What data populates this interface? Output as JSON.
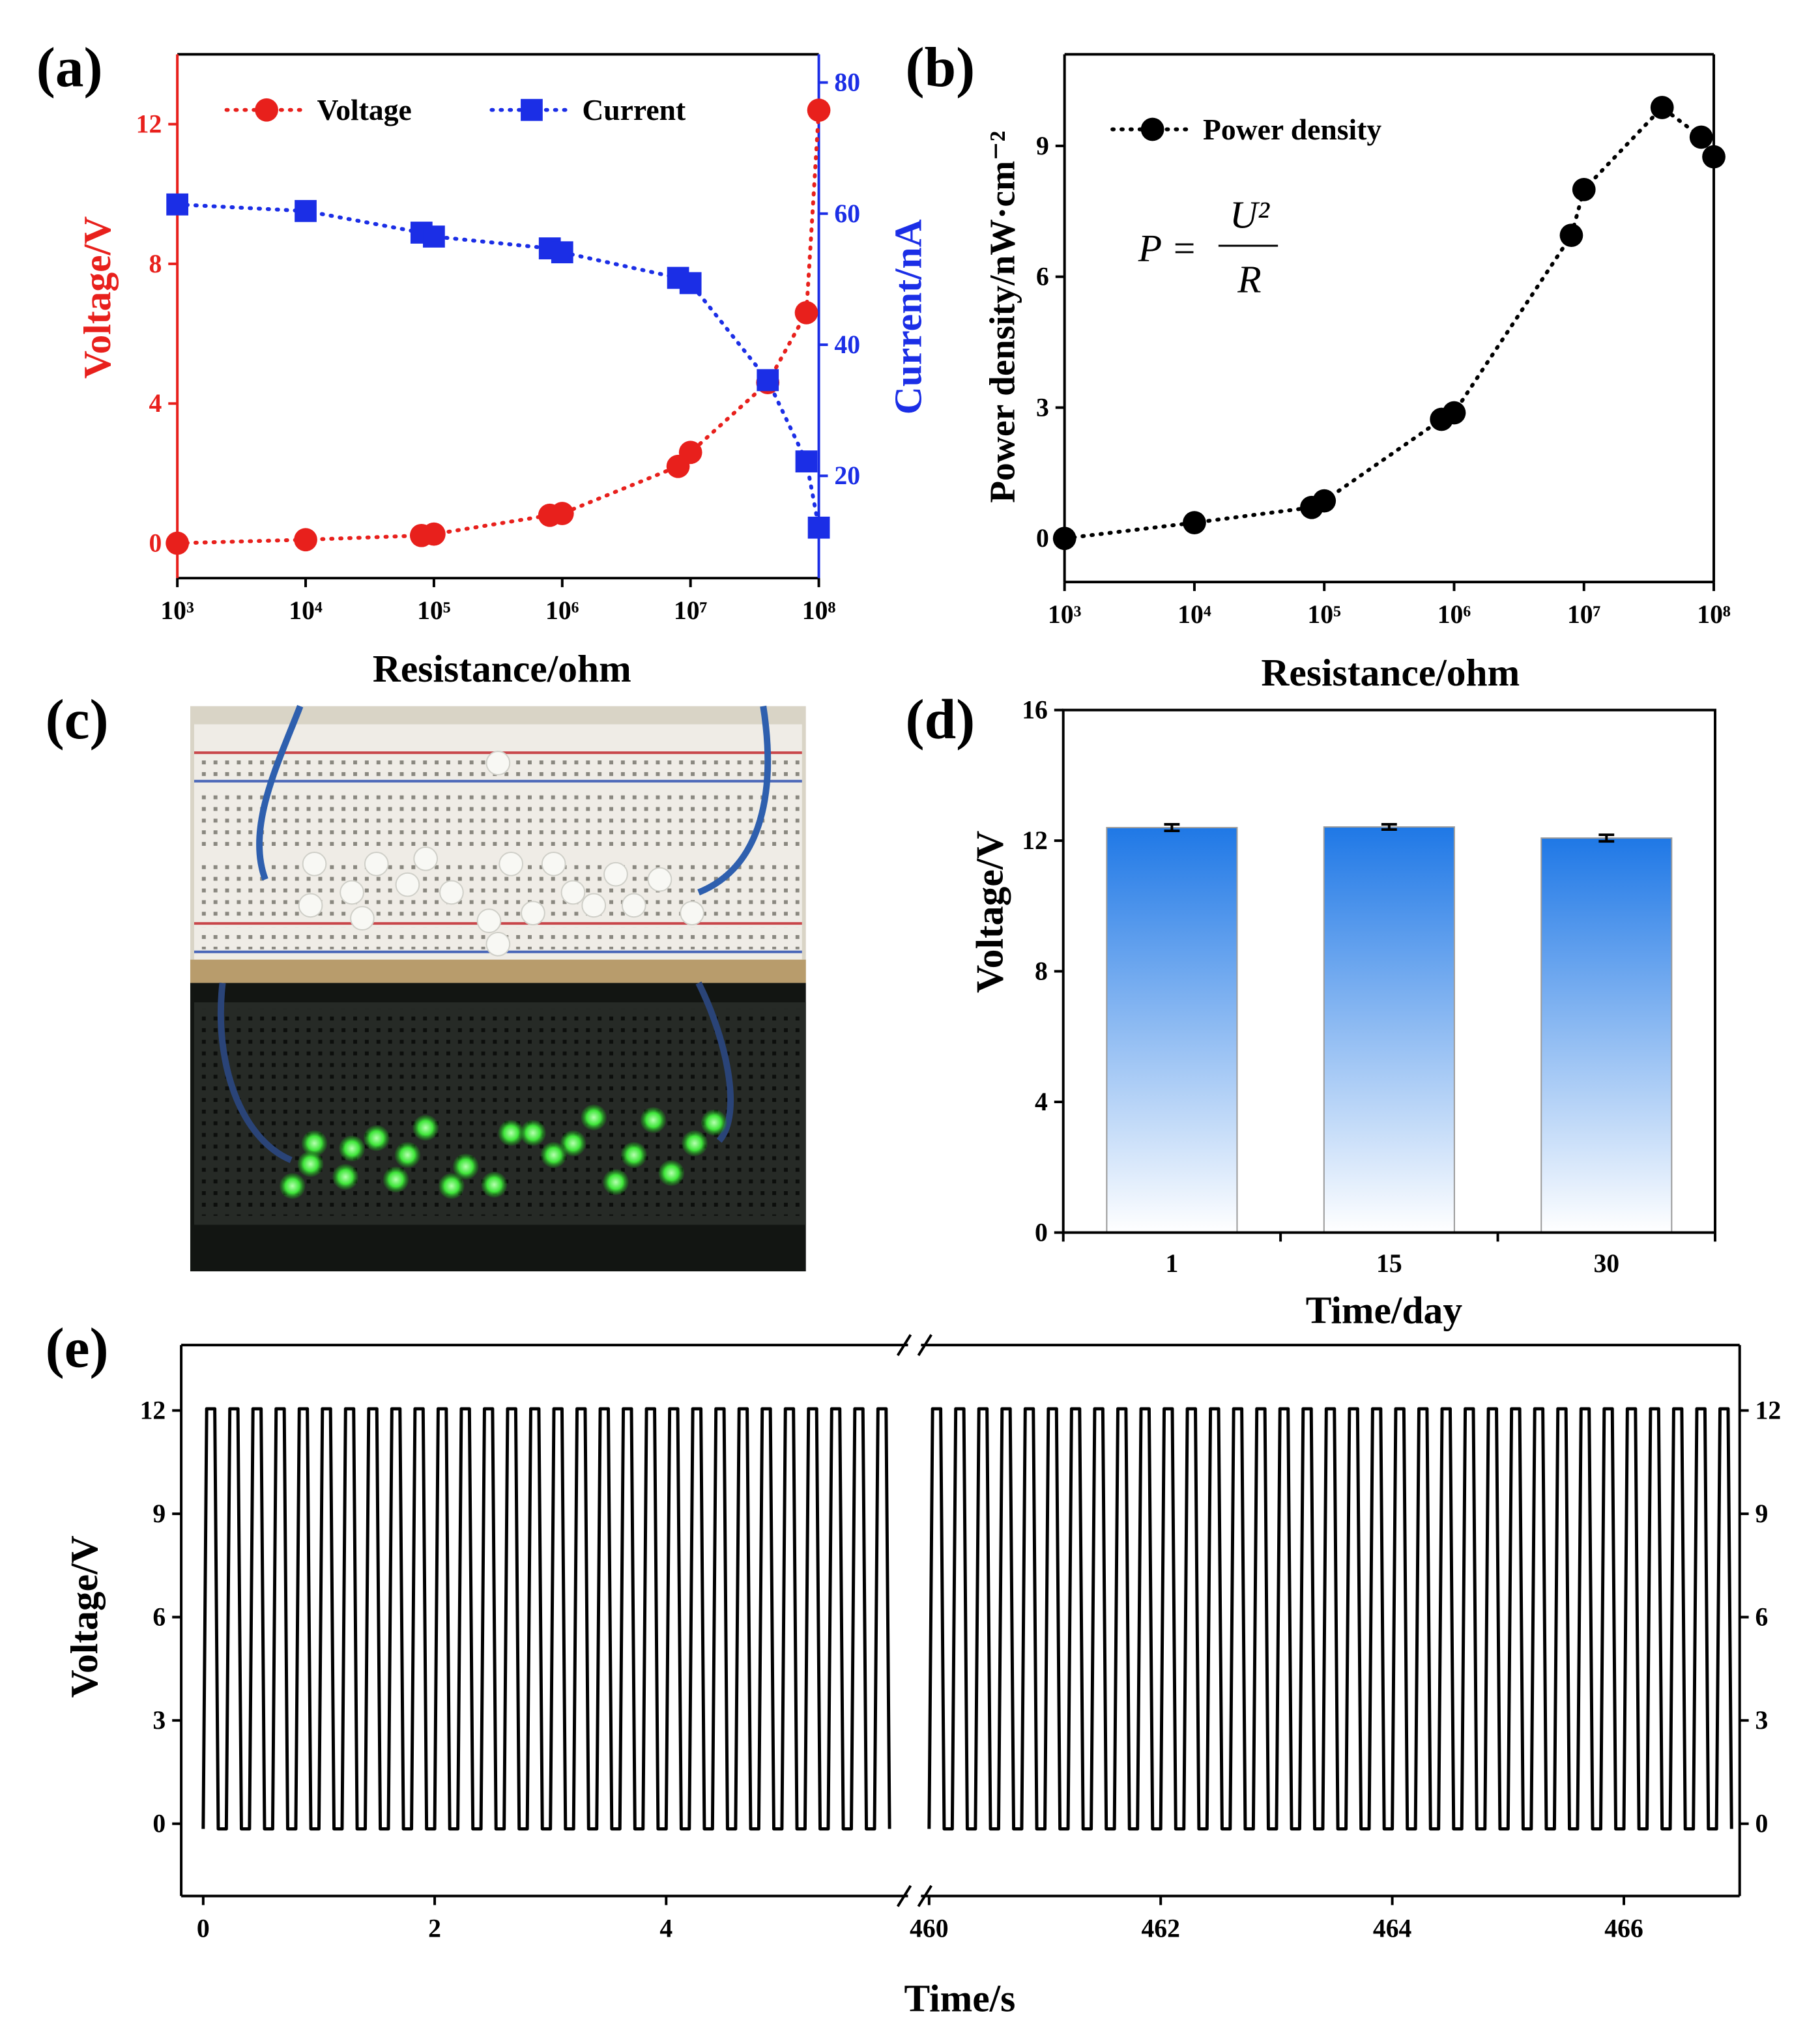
{
  "chart_data": [
    {
      "type": "line",
      "panel": "(a)",
      "x_label": "Resistance/ohm",
      "y_label": "Voltage/V",
      "y2_label": "Current/nA",
      "log_x": true,
      "xlim": [
        1000,
        100000000
      ],
      "xticks": [
        {
          "value": 1000,
          "label": "10³"
        },
        {
          "value": 10000,
          "label": "10⁴"
        },
        {
          "value": 100000,
          "label": "10⁵"
        },
        {
          "value": 1000000,
          "label": "10⁶"
        },
        {
          "value": 10000000,
          "label": "10⁷"
        },
        {
          "value": 100000000,
          "label": "10⁸"
        }
      ],
      "ylim": [
        -1,
        14
      ],
      "yticks": [
        0,
        4,
        8,
        12
      ],
      "y2lim": [
        4.4,
        84.3
      ],
      "y2ticks": [
        20,
        40,
        60,
        80
      ],
      "y_color": "#e8201c",
      "y2_color": "#1b2ee6",
      "x": [
        1000,
        10000,
        80000,
        100000,
        800000,
        1000000,
        8000000,
        10000000,
        40000000,
        80000000,
        100000000
      ],
      "series": [
        {
          "name": "Voltage",
          "color": "#e8201c",
          "marker": "circle",
          "values": [
            0,
            0.1,
            0.22,
            0.26,
            0.8,
            0.85,
            2.2,
            2.6,
            4.6,
            6.6,
            12.4
          ]
        },
        {
          "name": "Current",
          "color": "#1b2ee6",
          "marker": "square",
          "axis": "y2",
          "values": [
            61.4,
            60.4,
            57.1,
            56.5,
            54.7,
            54.1,
            50.2,
            49.4,
            34.6,
            22.2,
            12.1
          ]
        }
      ]
    },
    {
      "type": "line",
      "panel": "(b)",
      "x_label": "Resistance/ohm",
      "y_label": "Power density/nW·cm⁻²",
      "formula": {
        "lhs": "P =",
        "numerator": "U²",
        "denominator": "R"
      },
      "log_x": true,
      "xlim": [
        1000,
        100000000
      ],
      "xticks": [
        {
          "value": 1000,
          "label": "10³"
        },
        {
          "value": 10000,
          "label": "10⁴"
        },
        {
          "value": 100000,
          "label": "10⁵"
        },
        {
          "value": 1000000,
          "label": "10⁶"
        },
        {
          "value": 10000000,
          "label": "10⁷"
        },
        {
          "value": 100000000,
          "label": "10⁸"
        }
      ],
      "ylim": [
        -1,
        11.1
      ],
      "yticks": [
        0,
        3,
        6,
        9
      ],
      "x": [
        1000,
        10000,
        80000,
        100000,
        800000,
        1000000,
        8000000,
        10000000,
        40000000,
        80000000,
        100000000
      ],
      "series": [
        {
          "name": "Power density",
          "color": "#000000",
          "marker": "circle",
          "values": [
            0,
            0.36,
            0.71,
            0.86,
            2.73,
            2.88,
            6.95,
            8.0,
            9.88,
            9.2,
            8.75
          ]
        }
      ]
    },
    {
      "type": "bar",
      "panel": "(d)",
      "x_label": "Time/day",
      "y_label": "Voltage/V",
      "categories": [
        "1",
        "15",
        "30"
      ],
      "values": [
        12.4,
        12.42,
        12.08
      ],
      "errors": [
        0.1,
        0.08,
        0.1
      ],
      "color": "#1f78e6",
      "ylim": [
        0,
        16
      ],
      "yticks": [
        0,
        4,
        8,
        12,
        16
      ]
    },
    {
      "type": "broken_line",
      "panel": "(e)",
      "x_label": "Time/s",
      "y_label": "Voltage/V",
      "color": "#000000",
      "mirror_y": true,
      "ylim": [
        -2.1,
        13.9
      ],
      "yticks": [
        0,
        3,
        6,
        9,
        12
      ],
      "segments": [
        {
          "xlim": [
            -0.19,
            6.09
          ],
          "xticks": [
            0,
            2,
            4
          ],
          "x": [
            0,
            0.03,
            0.1,
            0.13,
            0.2,
            0.23,
            0.3,
            0.33,
            0.4,
            0.43,
            0.5,
            0.53,
            0.6,
            0.63,
            0.7,
            0.73,
            0.8,
            0.83,
            0.9,
            0.93,
            1,
            1.03,
            1.1,
            1.13,
            1.2,
            1.23,
            1.3,
            1.33,
            1.4,
            1.43,
            1.5,
            1.53,
            1.6,
            1.63,
            1.7,
            1.73,
            1.8,
            1.83,
            1.9,
            1.93,
            2,
            2.03,
            2.1,
            2.13,
            2.2,
            2.23,
            2.3,
            2.33,
            2.4,
            2.43,
            2.5,
            2.53,
            2.6,
            2.63,
            2.7,
            2.73,
            2.8,
            2.83,
            2.9,
            2.93,
            3,
            3.03,
            3.1,
            3.13,
            3.2,
            3.23,
            3.3,
            3.33,
            3.4,
            3.43,
            3.5,
            3.53,
            3.6,
            3.63,
            3.7,
            3.73,
            3.8,
            3.83,
            3.9,
            3.93,
            4,
            4.03,
            4.1,
            4.13,
            4.2,
            4.23,
            4.3,
            4.33,
            4.4,
            4.43,
            4.5,
            4.53,
            4.6,
            4.63,
            4.7,
            4.73,
            4.8,
            4.83,
            4.9,
            4.93,
            5,
            5.03,
            5.1,
            5.13,
            5.2,
            5.23,
            5.3,
            5.33,
            5.4,
            5.43,
            5.5,
            5.53,
            5.6,
            5.63,
            5.7,
            5.73,
            5.8,
            5.83,
            5.9,
            5.93
          ],
          "values": [
            -0.15,
            12.05,
            12.05,
            -0.15,
            -0.15,
            12.05,
            12.05,
            -0.15,
            -0.15,
            12.05,
            12.05,
            -0.15,
            -0.15,
            12.05,
            12.05,
            -0.15,
            -0.15,
            12.05,
            12.05,
            -0.15,
            -0.15,
            12.05,
            12.05,
            -0.15,
            -0.15,
            12.05,
            12.05,
            -0.15,
            -0.15,
            12.05,
            12.05,
            -0.15,
            -0.15,
            12.05,
            12.05,
            -0.15,
            -0.15,
            12.05,
            12.05,
            -0.15,
            -0.15,
            12.05,
            12.05,
            -0.15,
            -0.15,
            12.05,
            12.05,
            -0.15,
            -0.15,
            12.05,
            12.05,
            -0.15,
            -0.15,
            12.05,
            12.05,
            -0.15,
            -0.15,
            12.05,
            12.05,
            -0.15,
            -0.15,
            12.05,
            12.05,
            -0.15,
            -0.15,
            12.05,
            12.05,
            -0.15,
            -0.15,
            12.05,
            12.05,
            -0.15,
            -0.15,
            12.05,
            12.05,
            -0.15,
            -0.15,
            12.05,
            12.05,
            -0.15,
            -0.15,
            12.05,
            12.05,
            -0.15,
            -0.15,
            12.05,
            12.05,
            -0.15,
            -0.15,
            12.05,
            12.05,
            -0.15,
            -0.15,
            12.05,
            12.05,
            -0.15,
            -0.15,
            12.05,
            12.05,
            -0.15,
            -0.15,
            12.05,
            12.05,
            -0.15,
            -0.15,
            12.05,
            12.05,
            -0.15,
            -0.15,
            12.05,
            12.05,
            -0.15,
            -0.15,
            12.05,
            12.05,
            -0.15,
            -0.15,
            12.05,
            12.05,
            -0.15
          ]
        },
        {
          "xlim": [
            459.93,
            467.0
          ],
          "xticks": [
            460,
            462,
            464,
            466
          ],
          "x": [
            460,
            460.03,
            460.1,
            460.13,
            460.2,
            460.23,
            460.3,
            460.33,
            460.4,
            460.43,
            460.5,
            460.53,
            460.6,
            460.63,
            460.7,
            460.73,
            460.8,
            460.83,
            460.9,
            460.93,
            461,
            461.03,
            461.1,
            461.13,
            461.2,
            461.23,
            461.3,
            461.33,
            461.4,
            461.43,
            461.5,
            461.53,
            461.6,
            461.63,
            461.7,
            461.73,
            461.8,
            461.83,
            461.9,
            461.93,
            462,
            462.03,
            462.1,
            462.13,
            462.2,
            462.23,
            462.3,
            462.33,
            462.4,
            462.43,
            462.5,
            462.53,
            462.6,
            462.63,
            462.7,
            462.73,
            462.8,
            462.83,
            462.9,
            462.93,
            463,
            463.03,
            463.1,
            463.13,
            463.2,
            463.23,
            463.3,
            463.33,
            463.4,
            463.43,
            463.5,
            463.53,
            463.6,
            463.63,
            463.7,
            463.73,
            463.8,
            463.83,
            463.9,
            463.93,
            464,
            464.03,
            464.1,
            464.13,
            464.2,
            464.23,
            464.3,
            464.33,
            464.4,
            464.43,
            464.5,
            464.53,
            464.6,
            464.63,
            464.7,
            464.73,
            464.8,
            464.83,
            464.9,
            464.93,
            465,
            465.03,
            465.1,
            465.13,
            465.2,
            465.23,
            465.3,
            465.33,
            465.4,
            465.43,
            465.5,
            465.53,
            465.6,
            465.63,
            465.7,
            465.73,
            465.8,
            465.83,
            465.9,
            465.93,
            466,
            466.03,
            466.1,
            466.13,
            466.2,
            466.23,
            466.3,
            466.33,
            466.4,
            466.43,
            466.5,
            466.53,
            466.6,
            466.63,
            466.7,
            466.73,
            466.8,
            466.83,
            466.9,
            466.93
          ],
          "values": [
            -0.15,
            12.05,
            12.05,
            -0.15,
            -0.15,
            12.05,
            12.05,
            -0.15,
            -0.15,
            12.05,
            12.05,
            -0.15,
            -0.15,
            12.05,
            12.05,
            -0.15,
            -0.15,
            12.05,
            12.05,
            -0.15,
            -0.15,
            12.05,
            12.05,
            -0.15,
            -0.15,
            12.05,
            12.05,
            -0.15,
            -0.15,
            12.05,
            12.05,
            -0.15,
            -0.15,
            12.05,
            12.05,
            -0.15,
            -0.15,
            12.05,
            12.05,
            -0.15,
            -0.15,
            12.05,
            12.05,
            -0.15,
            -0.15,
            12.05,
            12.05,
            -0.15,
            -0.15,
            12.05,
            12.05,
            -0.15,
            -0.15,
            12.05,
            12.05,
            -0.15,
            -0.15,
            12.05,
            12.05,
            -0.15,
            -0.15,
            12.05,
            12.05,
            -0.15,
            -0.15,
            12.05,
            12.05,
            -0.15,
            -0.15,
            12.05,
            12.05,
            -0.15,
            -0.15,
            12.05,
            12.05,
            -0.15,
            -0.15,
            12.05,
            12.05,
            -0.15,
            -0.15,
            12.05,
            12.05,
            -0.15,
            -0.15,
            12.05,
            12.05,
            -0.15,
            -0.15,
            12.05,
            12.05,
            -0.15,
            -0.15,
            12.05,
            12.05,
            -0.15,
            -0.15,
            12.05,
            12.05,
            -0.15,
            -0.15,
            12.05,
            12.05,
            -0.15,
            -0.15,
            12.05,
            12.05,
            -0.15,
            -0.15,
            12.05,
            12.05,
            -0.15,
            -0.15,
            12.05,
            12.05,
            -0.15,
            -0.15,
            12.05,
            12.05,
            -0.15,
            -0.15,
            12.05,
            12.05,
            -0.15,
            -0.15,
            12.05,
            12.05,
            -0.15,
            -0.15,
            12.05,
            12.05,
            -0.15,
            -0.15,
            12.05,
            12.05,
            -0.15,
            -0.15,
            12.05,
            12.05,
            -0.15
          ]
        }
      ]
    }
  ],
  "photo": {
    "label": "(c)"
  }
}
